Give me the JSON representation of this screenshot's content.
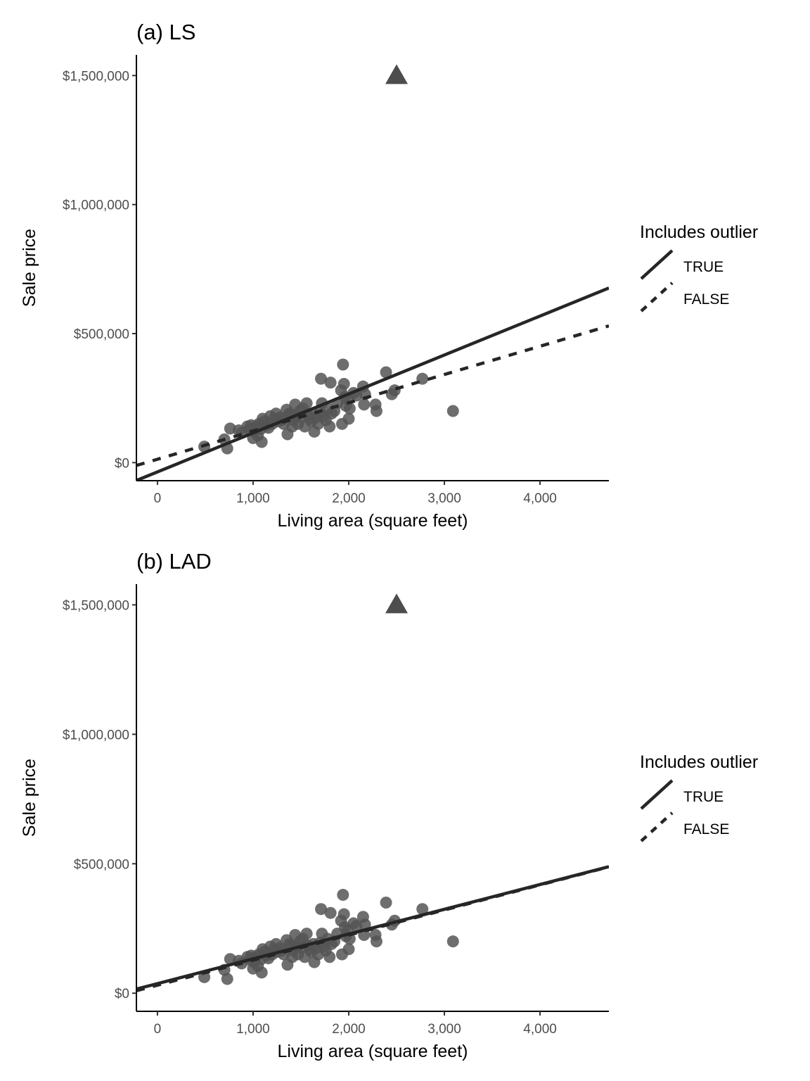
{
  "chart_data": [
    {
      "type": "scatter",
      "title": "(a) LS",
      "xlabel": "Living area (square feet)",
      "ylabel": "Sale price",
      "xlim": [
        -220,
        4720
      ],
      "ylim": [
        -70000,
        1580000
      ],
      "x_ticks": [
        0,
        1000,
        2000,
        3000,
        4000
      ],
      "x_tick_labels": [
        "0",
        "1,000",
        "2,000",
        "3,000",
        "4,000"
      ],
      "y_ticks": [
        0,
        500000,
        1000000,
        1500000
      ],
      "y_tick_labels": [
        "$0",
        "$500,000",
        "$1,000,000",
        "$1,500,000"
      ],
      "grid": false,
      "outlier": {
        "x": 2500,
        "y": 1500000,
        "marker": "triangle"
      },
      "fit_lines": [
        {
          "name": "TRUE",
          "linetype": "solid",
          "intercept": -36000,
          "slope": 151
        },
        {
          "name": "FALSE",
          "linetype": "dashed",
          "intercept": 13000,
          "slope": 109.5
        }
      ],
      "legend": {
        "title": "Includes outlier",
        "placement": "right",
        "entries": [
          "TRUE",
          "FALSE"
        ]
      }
    },
    {
      "type": "scatter",
      "title": "(b) LAD",
      "xlabel": "Living area (square feet)",
      "ylabel": "Sale price",
      "xlim": [
        -220,
        4720
      ],
      "ylim": [
        -70000,
        1580000
      ],
      "x_ticks": [
        0,
        1000,
        2000,
        3000,
        4000
      ],
      "x_tick_labels": [
        "0",
        "1,000",
        "2,000",
        "3,000",
        "4,000"
      ],
      "y_ticks": [
        0,
        500000,
        1000000,
        1500000
      ],
      "y_tick_labels": [
        "$0",
        "$500,000",
        "$1,000,000",
        "$1,500,000"
      ],
      "grid": false,
      "outlier": {
        "x": 2500,
        "y": 1500000,
        "marker": "triangle"
      },
      "fit_lines": [
        {
          "name": "TRUE",
          "linetype": "solid",
          "intercept": 37000,
          "slope": 95.7
        },
        {
          "name": "FALSE",
          "linetype": "dashed",
          "intercept": 31000,
          "slope": 96.8
        }
      ],
      "legend": {
        "title": "Includes outlier",
        "placement": "right",
        "entries": [
          "TRUE",
          "FALSE"
        ]
      }
    }
  ],
  "points": [
    [
      490,
      62000
    ],
    [
      700,
      90000
    ],
    [
      730,
      55000
    ],
    [
      760,
      132000
    ],
    [
      850,
      125000
    ],
    [
      880,
      115000
    ],
    [
      940,
      140000
    ],
    [
      960,
      130000
    ],
    [
      980,
      145000
    ],
    [
      1000,
      95000
    ],
    [
      1010,
      120000
    ],
    [
      1030,
      140000
    ],
    [
      1050,
      105000
    ],
    [
      1060,
      150000
    ],
    [
      1080,
      130000
    ],
    [
      1090,
      80000
    ],
    [
      1100,
      170000
    ],
    [
      1120,
      160000
    ],
    [
      1140,
      145000
    ],
    [
      1160,
      135000
    ],
    [
      1180,
      180000
    ],
    [
      1200,
      150000
    ],
    [
      1220,
      170000
    ],
    [
      1240,
      190000
    ],
    [
      1260,
      160000
    ],
    [
      1280,
      175000
    ],
    [
      1300,
      165000
    ],
    [
      1320,
      150000
    ],
    [
      1350,
      205000
    ],
    [
      1360,
      110000
    ],
    [
      1380,
      190000
    ],
    [
      1400,
      185000
    ],
    [
      1410,
      140000
    ],
    [
      1420,
      165000
    ],
    [
      1440,
      225000
    ],
    [
      1450,
      180000
    ],
    [
      1470,
      150000
    ],
    [
      1490,
      200000
    ],
    [
      1500,
      175000
    ],
    [
      1520,
      210000
    ],
    [
      1540,
      140000
    ],
    [
      1560,
      230000
    ],
    [
      1570,
      185000
    ],
    [
      1590,
      170000
    ],
    [
      1610,
      160000
    ],
    [
      1630,
      190000
    ],
    [
      1640,
      120000
    ],
    [
      1660,
      175000
    ],
    [
      1680,
      150000
    ],
    [
      1700,
      195000
    ],
    [
      1710,
      325000
    ],
    [
      1720,
      230000
    ],
    [
      1740,
      180000
    ],
    [
      1760,
      165000
    ],
    [
      1780,
      210000
    ],
    [
      1800,
      140000
    ],
    [
      1810,
      310000
    ],
    [
      1820,
      190000
    ],
    [
      1850,
      200000
    ],
    [
      1880,
      230000
    ],
    [
      1920,
      280000
    ],
    [
      1930,
      150000
    ],
    [
      1940,
      380000
    ],
    [
      1950,
      305000
    ],
    [
      1960,
      255000
    ],
    [
      1970,
      220000
    ],
    [
      1990,
      245000
    ],
    [
      2000,
      170000
    ],
    [
      2010,
      210000
    ],
    [
      2050,
      270000
    ],
    [
      2080,
      260000
    ],
    [
      2150,
      295000
    ],
    [
      2160,
      225000
    ],
    [
      2170,
      265000
    ],
    [
      2280,
      225000
    ],
    [
      2290,
      200000
    ],
    [
      2390,
      350000
    ],
    [
      2450,
      265000
    ],
    [
      2480,
      280000
    ],
    [
      2770,
      325000
    ],
    [
      3090,
      200000
    ]
  ],
  "points_style": {
    "color": "#555555",
    "opacity": 0.85,
    "line_color": "#262626",
    "outlier_color": "#4d4d4d"
  }
}
